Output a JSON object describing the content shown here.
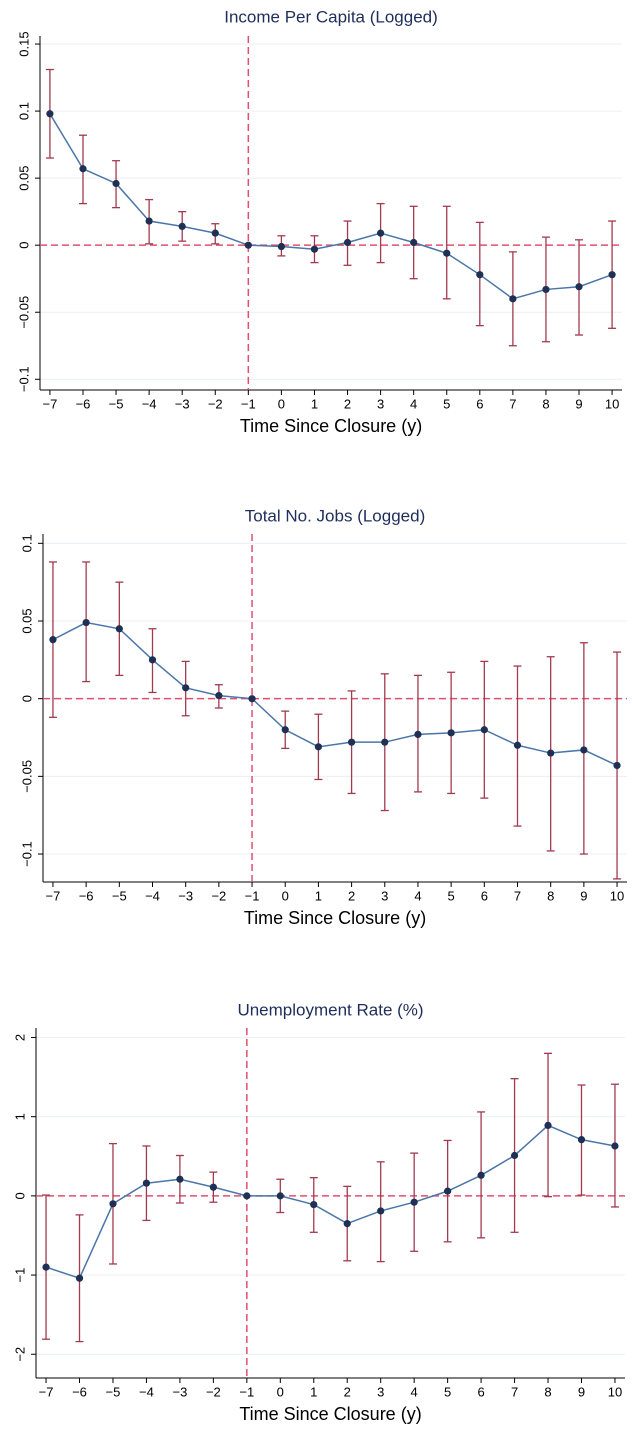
{
  "chart_data": [
    {
      "type": "line",
      "title": "Income Per Capita (Logged)",
      "x_label": "Time Since Closure (y)",
      "x": [
        -7,
        -6,
        -5,
        -4,
        -3,
        -2,
        -1,
        0,
        1,
        2,
        3,
        4,
        5,
        6,
        7,
        8,
        9,
        10
      ],
      "values": [
        0.098,
        0.057,
        0.046,
        0.018,
        0.014,
        0.009,
        0,
        -0.001,
        -0.003,
        0.002,
        0.009,
        0.002,
        -0.006,
        -0.022,
        -0.04,
        -0.033,
        -0.031,
        -0.022
      ],
      "upper": [
        0.131,
        0.082,
        0.063,
        0.034,
        0.025,
        0.016,
        0,
        0.007,
        0.007,
        0.018,
        0.031,
        0.029,
        0.029,
        0.017,
        -0.005,
        0.006,
        0.004,
        0.018
      ],
      "lower": [
        0.065,
        0.031,
        0.028,
        0.001,
        0.003,
        0.001,
        0,
        -0.008,
        -0.013,
        -0.015,
        -0.013,
        -0.025,
        -0.04,
        -0.06,
        -0.075,
        -0.072,
        -0.067,
        -0.062
      ],
      "xlim": [
        -7.3,
        10.3
      ],
      "ylim": [
        -0.108,
        0.156
      ],
      "xticks": [
        {
          "value": -7,
          "label": "−7"
        },
        {
          "value": -6,
          "label": "−6"
        },
        {
          "value": -5,
          "label": "−5"
        },
        {
          "value": -4,
          "label": "−4"
        },
        {
          "value": -3,
          "label": "−3"
        },
        {
          "value": -2,
          "label": "−2"
        },
        {
          "value": -1,
          "label": "−1"
        },
        0,
        1,
        2,
        3,
        4,
        5,
        6,
        7,
        8,
        9,
        10
      ],
      "yticks": [
        {
          "value": -0.1,
          "label": "−0.1"
        },
        {
          "value": -0.05,
          "label": "−0.05"
        },
        0,
        0.05,
        0.1,
        0.15
      ],
      "grid": true,
      "reference_lines": {
        "x": -1,
        "y": 0
      },
      "color": "#4a76a8",
      "marker_color": "#1f3055",
      "errorbar_color": "#a23a4f",
      "reference_color": "#e0506e"
    },
    {
      "type": "line",
      "title": "Total No. Jobs (Logged)",
      "x_label": "Time Since Closure (y)",
      "x": [
        -7,
        -6,
        -5,
        -4,
        -3,
        -2,
        -1,
        0,
        1,
        2,
        3,
        4,
        5,
        6,
        7,
        8,
        9,
        10
      ],
      "values": [
        0.038,
        0.049,
        0.045,
        0.025,
        0.007,
        0.002,
        0,
        -0.02,
        -0.031,
        -0.028,
        -0.028,
        -0.023,
        -0.022,
        -0.02,
        -0.03,
        -0.035,
        -0.033,
        -0.043
      ],
      "upper": [
        0.088,
        0.088,
        0.075,
        0.045,
        0.024,
        0.009,
        0,
        -0.008,
        -0.01,
        0.005,
        0.016,
        0.015,
        0.017,
        0.024,
        0.021,
        0.027,
        0.036,
        0.03
      ],
      "lower": [
        -0.012,
        0.011,
        0.015,
        0.004,
        -0.011,
        -0.006,
        0,
        -0.032,
        -0.052,
        -0.061,
        -0.072,
        -0.06,
        -0.061,
        -0.064,
        -0.082,
        -0.098,
        -0.1,
        -0.116
      ],
      "xlim": [
        -7.3,
        10.3
      ],
      "ylim": [
        -0.118,
        0.106
      ],
      "xticks": [
        {
          "value": -7,
          "label": "−7"
        },
        {
          "value": -6,
          "label": "−6"
        },
        {
          "value": -5,
          "label": "−5"
        },
        {
          "value": -4,
          "label": "−4"
        },
        {
          "value": -3,
          "label": "−3"
        },
        {
          "value": -2,
          "label": "−2"
        },
        {
          "value": -1,
          "label": "−1"
        },
        0,
        1,
        2,
        3,
        4,
        5,
        6,
        7,
        8,
        9,
        10
      ],
      "yticks": [
        {
          "value": -0.1,
          "label": "−0.1"
        },
        {
          "value": -0.05,
          "label": "−0.05"
        },
        0,
        0.05,
        0.1
      ],
      "grid": true,
      "reference_lines": {
        "x": -1,
        "y": 0
      },
      "color": "#4a76a8",
      "marker_color": "#1f3055",
      "errorbar_color": "#a23a4f",
      "reference_color": "#e0506e"
    },
    {
      "type": "line",
      "title": "Unemployment Rate (%)",
      "x_label": "Time Since Closure (y)",
      "x": [
        -7,
        -6,
        -5,
        -4,
        -3,
        -2,
        -1,
        0,
        1,
        2,
        3,
        4,
        5,
        6,
        7,
        8,
        9,
        10
      ],
      "values": [
        -0.9,
        -1.04,
        -0.1,
        0.16,
        0.21,
        0.11,
        0,
        0,
        -0.11,
        -0.35,
        -0.19,
        -0.08,
        0.06,
        0.26,
        0.51,
        0.89,
        0.71,
        0.63
      ],
      "upper": [
        0.01,
        -0.24,
        0.66,
        0.63,
        0.51,
        0.3,
        0,
        0.21,
        0.23,
        0.12,
        0.43,
        0.54,
        0.7,
        1.06,
        1.48,
        1.8,
        1.4,
        1.41
      ],
      "lower": [
        -1.81,
        -1.84,
        -0.86,
        -0.31,
        -0.09,
        -0.08,
        0,
        -0.21,
        -0.46,
        -0.82,
        -0.83,
        -0.7,
        -0.58,
        -0.53,
        -0.46,
        -0.01,
        0.01,
        -0.14
      ],
      "xlim": [
        -7.3,
        10.3
      ],
      "ylim": [
        -2.3,
        2.12
      ],
      "xticks": [
        {
          "value": -7,
          "label": "−7"
        },
        {
          "value": -6,
          "label": "−6"
        },
        {
          "value": -5,
          "label": "−5"
        },
        {
          "value": -4,
          "label": "−4"
        },
        {
          "value": -3,
          "label": "−3"
        },
        {
          "value": -2,
          "label": "−2"
        },
        {
          "value": -1,
          "label": "−1"
        },
        0,
        1,
        2,
        3,
        4,
        5,
        6,
        7,
        8,
        9,
        10
      ],
      "yticks": [
        {
          "value": -2,
          "label": "−2"
        },
        {
          "value": -1,
          "label": "−1"
        },
        0,
        1,
        2
      ],
      "grid": true,
      "reference_lines": {
        "x": -1,
        "y": 0
      },
      "color": "#4a76a8",
      "marker_color": "#1f3055",
      "errorbar_color": "#a23a4f",
      "reference_color": "#e0506e"
    }
  ]
}
